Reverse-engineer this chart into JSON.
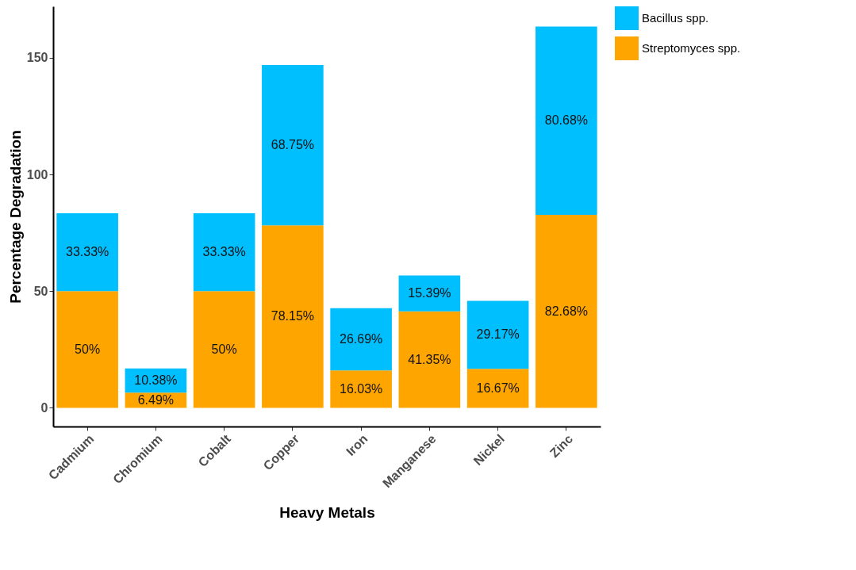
{
  "chart_data": {
    "type": "bar",
    "stacked": true,
    "xlabel": "Heavy Metals",
    "ylabel": "Percentage Degradation",
    "categories": [
      "Cadmium",
      "Chromium",
      "Cobalt",
      "Copper",
      "Iron",
      "Manganese",
      "Nickel",
      "Zinc"
    ],
    "series": [
      {
        "name": "Streptomyces spp.",
        "color": "#ffa500",
        "values": [
          50,
          6.49,
          50,
          78.15,
          16.03,
          41.35,
          16.67,
          82.68
        ],
        "value_labels": [
          "50%",
          "6.49%",
          "50%",
          "78.15%",
          "16.03%",
          "41.35%",
          "16.67%",
          "82.68%"
        ]
      },
      {
        "name": "Bacillus spp.",
        "color": "#00bfff",
        "values": [
          33.33,
          10.38,
          33.33,
          68.75,
          26.69,
          15.39,
          29.17,
          80.68
        ],
        "value_labels": [
          "33.33%",
          "10.38%",
          "33.33%",
          "68.75%",
          "26.69%",
          "15.39%",
          "29.17%",
          "80.68%"
        ]
      }
    ],
    "ylim": [
      -8,
      172
    ],
    "yticks": [
      0,
      50,
      100,
      150
    ],
    "grid": false,
    "legend": "right"
  }
}
